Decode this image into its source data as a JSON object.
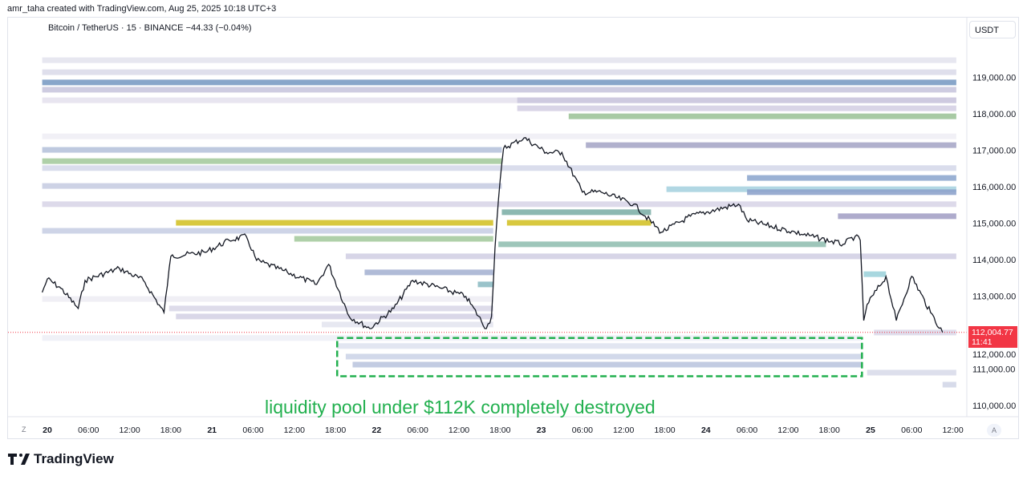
{
  "credit": "amr_taha created with TradingView.com, Aug 25, 2025 10:18 UTC+3",
  "symbol": "Bitcoin / TetherUS · 15 · BINANCE  −44.33 (−0.04%)",
  "currency": "USDT",
  "logo": "TradingView",
  "corner_left": "Z",
  "corner_right": "A",
  "last_price": {
    "value": "112,004.77",
    "countdown": "11:41",
    "color": "#f23645"
  },
  "annotation": "liquidity pool under $112K completely destroyed",
  "chart_data": {
    "type": "line",
    "title": "",
    "ylim": [
      110000,
      120000
    ],
    "y_ticks": [
      "110,000.00",
      "111,000.00",
      "112,000.00",
      "113,000.00",
      "114,000.00",
      "115,000.00",
      "116,000.00",
      "117,000.00",
      "118,000.00",
      "119,000.00"
    ],
    "y_tick_values": [
      110000,
      111000,
      112000,
      113000,
      114000,
      115000,
      116000,
      117000,
      118000,
      119000
    ],
    "x_ticks": [
      [
        "20",
        "08-20 00:00"
      ],
      [
        "06:00",
        "08-20 06:00"
      ],
      [
        "12:00",
        "08-20 12:00"
      ],
      [
        "18:00",
        "08-20 18:00"
      ],
      [
        "21",
        "08-21 00:00"
      ],
      [
        "06:00",
        "08-21 06:00"
      ],
      [
        "12:00",
        "08-21 12:00"
      ],
      [
        "18:00",
        "08-21 18:00"
      ],
      [
        "22",
        "08-22 00:00"
      ],
      [
        "06:00",
        "08-22 06:00"
      ],
      [
        "12:00",
        "08-22 12:00"
      ],
      [
        "18:00",
        "08-22 18:00"
      ],
      [
        "23",
        "08-23 00:00"
      ],
      [
        "06:00",
        "08-23 06:00"
      ],
      [
        "12:00",
        "08-23 12:00"
      ],
      [
        "18:00",
        "08-23 18:00"
      ],
      [
        "24",
        "08-24 00:00"
      ],
      [
        "06:00",
        "08-24 06:00"
      ],
      [
        "12:00",
        "08-24 12:00"
      ],
      [
        "18:00",
        "08-24 18:00"
      ],
      [
        "25",
        "08-25 00:00"
      ],
      [
        "06:00",
        "08-25 06:00"
      ],
      [
        "12:00",
        "08-25 12:00"
      ]
    ],
    "series": [
      {
        "points": [
          [
            "08-19 23:15",
            113100
          ],
          [
            "08-20 00:00",
            113470
          ],
          [
            "08-20 02:00",
            113210
          ],
          [
            "08-20 04:30",
            112660
          ],
          [
            "08-20 05:30",
            113430
          ],
          [
            "08-20 10:30",
            113760
          ],
          [
            "08-20 14:00",
            113430
          ],
          [
            "08-20 17:00",
            112550
          ],
          [
            "08-20 18:00",
            114090
          ],
          [
            "08-20 23:00",
            114200
          ],
          [
            "08-21 02:30",
            114530
          ],
          [
            "08-21 05:00",
            114640
          ],
          [
            "08-21 06:30",
            113980
          ],
          [
            "08-21 11:00",
            113650
          ],
          [
            "08-21 15:15",
            113320
          ],
          [
            "08-21 17:00",
            113870
          ],
          [
            "08-21 20:00",
            112440
          ],
          [
            "08-21 23:00",
            112110
          ],
          [
            "08-22 02:30",
            112660
          ],
          [
            "08-22 05:15",
            113430
          ],
          [
            "08-22 09:30",
            113210
          ],
          [
            "08-22 13:00",
            112990
          ],
          [
            "08-22 16:00",
            112110
          ],
          [
            "08-22 16:45",
            112440
          ],
          [
            "08-22 17:15",
            114310
          ],
          [
            "08-22 17:45",
            115630
          ],
          [
            "08-22 18:30",
            117050
          ],
          [
            "08-22 21:30",
            117340
          ],
          [
            "08-23 00:45",
            116940
          ],
          [
            "08-23 03:00",
            116940
          ],
          [
            "08-23 06:00",
            115850
          ],
          [
            "08-23 08:45",
            115850
          ],
          [
            "08-23 13:30",
            115520
          ],
          [
            "08-23 17:30",
            114750
          ],
          [
            "08-23 21:45",
            115190
          ],
          [
            "08-24 04:45",
            115520
          ],
          [
            "08-24 06:00",
            115080
          ],
          [
            "08-24 13:00",
            114750
          ],
          [
            "08-24 20:00",
            114420
          ],
          [
            "08-24 21:45",
            114640
          ],
          [
            "08-24 22:30",
            114530
          ],
          [
            "08-24 23:00",
            112330
          ],
          [
            "08-24 23:30",
            112770
          ],
          [
            "08-25 02:15",
            113540
          ],
          [
            "08-25 03:45",
            112330
          ],
          [
            "08-25 06:00",
            113540
          ],
          [
            "08-25 08:45",
            112550
          ],
          [
            "08-25 10:30",
            112005
          ]
        ],
        "color": "#131722"
      }
    ],
    "current_price": 112004.77,
    "liquidity_bands": [
      [
        119470,
        "08-19 23:15",
        "08-25 12:30",
        "#e4e4ee"
      ],
      [
        119140,
        "08-19 23:15",
        "08-25 12:30",
        "#dcdcea"
      ],
      [
        118860,
        "08-19 23:15",
        "08-25 12:30",
        "#7b9cc4"
      ],
      [
        118660,
        "08-19 23:15",
        "08-25 12:30",
        "#c9c6de"
      ],
      [
        118370,
        "08-19 23:15",
        "08-25 12:30",
        "#e6e2ee"
      ],
      [
        118370,
        "08-22 20:30",
        "08-25 12:30",
        "#cbc6de"
      ],
      [
        118150,
        "08-22 20:30",
        "08-25 12:30",
        "#d5d0e4"
      ],
      [
        117930,
        "08-23 04:00",
        "08-25 12:30",
        "#9fc49a"
      ],
      [
        117380,
        "08-19 23:15",
        "08-25 12:30",
        "#f0eef5"
      ],
      [
        117140,
        "08-23 06:30",
        "08-25 12:30",
        "#a9a8c8"
      ],
      [
        117010,
        "08-19 23:15",
        "08-22 18:15",
        "#b7c3dc"
      ],
      [
        116700,
        "08-19 23:15",
        "08-22 18:15",
        "#a6cb9f"
      ],
      [
        116510,
        "08-19 23:15",
        "08-25 12:30",
        "#d6d9ea"
      ],
      [
        116240,
        "08-24 06:00",
        "08-25 12:30",
        "#8fa9cf"
      ],
      [
        116020,
        "08-19 23:15",
        "08-22 18:15",
        "#c8cde2"
      ],
      [
        115930,
        "08-23 18:15",
        "08-25 12:30",
        "#a9d3e0"
      ],
      [
        115850,
        "08-24 06:00",
        "08-25 12:30",
        "#8fa4cc"
      ],
      [
        115520,
        "08-19 23:15",
        "08-25 12:30",
        "#d9d6e8"
      ],
      [
        115300,
        "08-22 18:15",
        "08-23 16:00",
        "#7fb0a8"
      ],
      [
        115190,
        "08-24 19:15",
        "08-25 12:30",
        "#a5a2c6"
      ],
      [
        115010,
        "08-20 18:45",
        "08-22 17:00",
        "#d4c22a"
      ],
      [
        115010,
        "08-22 19:00",
        "08-23 16:00",
        "#d4c22a"
      ],
      [
        114790,
        "08-19 23:15",
        "08-22 17:00",
        "#c9cfe4"
      ],
      [
        114570,
        "08-21 12:00",
        "08-22 17:00",
        "#a6cba0"
      ],
      [
        114420,
        "08-22 17:45",
        "08-24 17:30",
        "#93c0b3"
      ],
      [
        114090,
        "08-21 19:30",
        "08-25 12:30",
        "#d3d0e4"
      ],
      [
        113650,
        "08-21 22:15",
        "08-22 17:00",
        "#a7b4d3"
      ],
      [
        113600,
        "08-24 23:00",
        "08-25 02:15",
        "#9fd3db"
      ],
      [
        113320,
        "08-22 14:45",
        "08-22 17:00",
        "#8fbcc4"
      ],
      [
        112920,
        "08-19 23:15",
        "08-22 17:00",
        "#eeedf4"
      ],
      [
        112660,
        "08-20 17:45",
        "08-22 17:00",
        "#dad8e8"
      ],
      [
        112440,
        "08-20 18:45",
        "08-22 17:00",
        "#d5d3e6"
      ],
      [
        112220,
        "08-21 16:00",
        "08-22 17:00",
        "#e4e6f0"
      ],
      [
        112000,
        "08-25 00:30",
        "08-25 12:30",
        "#dcd9ea"
      ],
      [
        111850,
        "08-19 23:15",
        "08-24 22:45",
        "#eef0f6"
      ],
      [
        111630,
        "08-21 18:15",
        "08-24 22:45",
        "#dfe3ef"
      ],
      [
        111340,
        "08-21 19:30",
        "08-24 22:45",
        "#cdd5e8"
      ],
      [
        111120,
        "08-21 20:30",
        "08-24 22:45",
        "#bcc6df"
      ],
      [
        110900,
        "08-24 23:30",
        "08-25 12:30",
        "#d9dcea"
      ],
      [
        110570,
        "08-25 10:30",
        "08-25 12:30",
        "#d3d7e8"
      ]
    ],
    "highlight_box": {
      "from": "08-21 18:15",
      "to": "08-24 22:45",
      "low": 110800,
      "high": 111850,
      "color": "#22b04f"
    }
  }
}
